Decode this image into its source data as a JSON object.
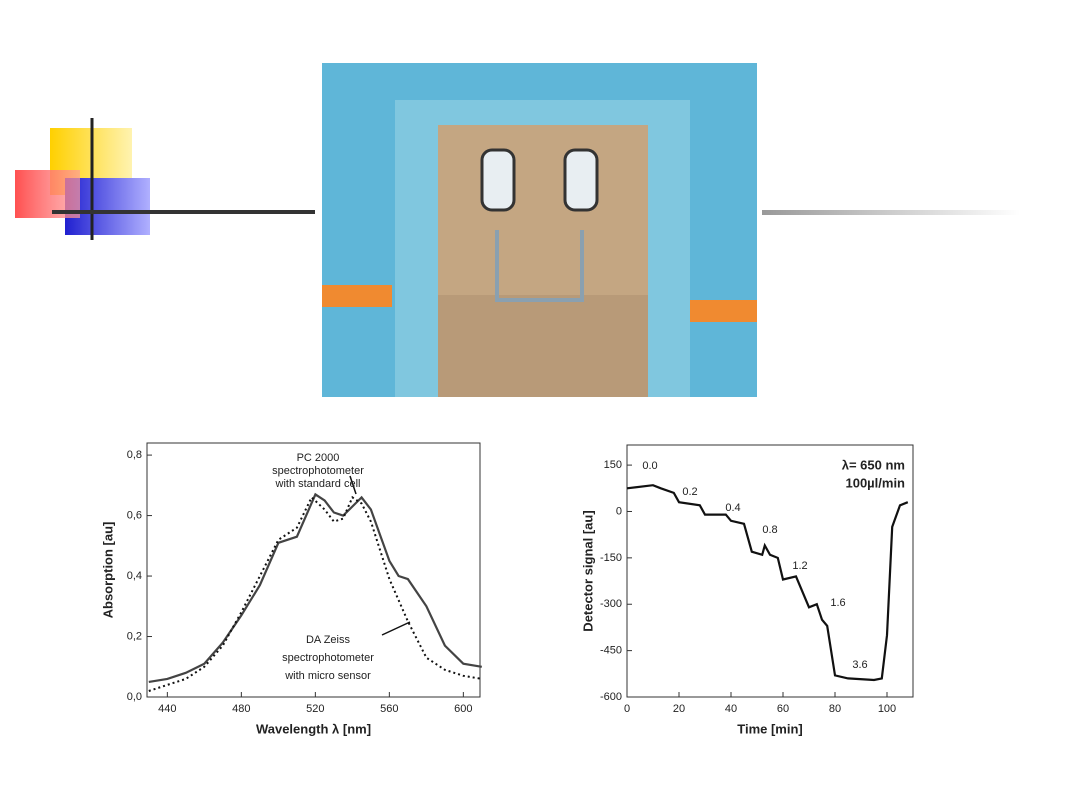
{
  "chart_data": [
    {
      "type": "line",
      "xlabel": "Wavelength λ [nm]",
      "ylabel": "Absorption [au]",
      "annotations": [
        "PC 2000",
        "spectrophotometer",
        "with standard cell",
        "DA Zeiss",
        "spectrophotometer",
        "with micro sensor"
      ],
      "xlim": [
        429,
        609
      ],
      "xticks": [
        440,
        480,
        520,
        560,
        600
      ],
      "ylim": [
        0,
        0.84
      ],
      "yticks": [
        {
          "value": 0,
          "label": "0,0"
        },
        {
          "value": 0.2,
          "label": "0,2"
        },
        {
          "value": 0.4,
          "label": "0,4"
        },
        {
          "value": 0.6,
          "label": "0,6"
        },
        {
          "value": 0.8,
          "label": "0,8"
        }
      ],
      "series": [
        {
          "color": "#444444",
          "dash": "solid",
          "x": [
            430,
            440,
            450,
            460,
            470,
            480,
            490,
            500,
            510,
            520,
            525,
            530,
            535,
            540,
            545,
            550,
            560,
            565,
            570,
            580,
            590,
            600,
            610
          ],
          "values": [
            0.05,
            0.06,
            0.08,
            0.11,
            0.18,
            0.27,
            0.37,
            0.51,
            0.53,
            0.67,
            0.65,
            0.61,
            0.6,
            0.63,
            0.66,
            0.62,
            0.45,
            0.4,
            0.39,
            0.3,
            0.17,
            0.11,
            0.1
          ]
        },
        {
          "color": "#111111",
          "dash": "dotted",
          "x": [
            430,
            440,
            450,
            460,
            470,
            480,
            490,
            500,
            510,
            518,
            525,
            530,
            535,
            540,
            545,
            550,
            560,
            570,
            580,
            590,
            600,
            610
          ],
          "values": [
            0.02,
            0.04,
            0.06,
            0.1,
            0.17,
            0.28,
            0.4,
            0.52,
            0.56,
            0.66,
            0.62,
            0.58,
            0.59,
            0.66,
            0.64,
            0.58,
            0.39,
            0.25,
            0.13,
            0.09,
            0.07,
            0.06
          ]
        }
      ]
    },
    {
      "type": "line",
      "xlabel": "Time [min]",
      "ylabel": "Detector signal [au]",
      "annotations": [
        "λ= 650 nm",
        "100µl/min",
        "0.0",
        "0.2",
        "0.4",
        "0.8",
        "1.2",
        "1.6",
        "3.6"
      ],
      "xlim": [
        0,
        110
      ],
      "xticks": [
        0,
        20,
        40,
        60,
        80,
        100
      ],
      "ylim": [
        -600,
        215
      ],
      "yticks": [
        150,
        0,
        -150,
        -300,
        -450,
        -600
      ],
      "series": [
        {
          "color": "#111111",
          "dash": "solid",
          "x": [
            0,
            10,
            13,
            18,
            20,
            28,
            30,
            38,
            40,
            45,
            48,
            52,
            53,
            55,
            58,
            60,
            65,
            70,
            73,
            75,
            77,
            80,
            85,
            95,
            98,
            100,
            102,
            105,
            108
          ],
          "values": [
            75,
            85,
            75,
            60,
            30,
            20,
            -10,
            -10,
            -30,
            -40,
            -130,
            -140,
            -110,
            -140,
            -150,
            -220,
            -210,
            -310,
            -300,
            -350,
            -370,
            -530,
            -540,
            -545,
            -540,
            -400,
            -50,
            20,
            30
          ]
        }
      ]
    }
  ]
}
